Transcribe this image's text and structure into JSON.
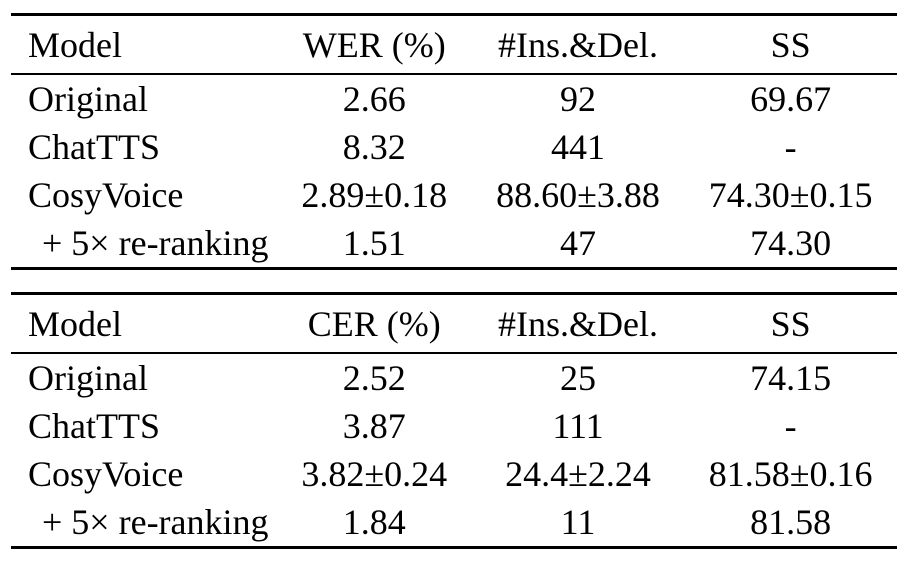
{
  "tables": [
    {
      "name": "wer-table",
      "columns": [
        "Model",
        "WER (%)",
        "#Ins.&Del.",
        "SS"
      ],
      "rows": [
        {
          "model": "Original",
          "indent": false,
          "values": [
            "2.66",
            "92",
            "69.67"
          ]
        },
        {
          "model": "ChatTTS",
          "indent": false,
          "values": [
            "8.32",
            "441",
            "-"
          ]
        },
        {
          "model": "CosyVoice",
          "indent": false,
          "values": [
            "2.89±0.18",
            "88.60±3.88",
            "74.30±0.15"
          ]
        },
        {
          "model": "+ 5× re-ranking",
          "indent": true,
          "values": [
            "1.51",
            "47",
            "74.30"
          ]
        }
      ]
    },
    {
      "name": "cer-table",
      "columns": [
        "Model",
        "CER (%)",
        "#Ins.&Del.",
        "SS"
      ],
      "rows": [
        {
          "model": "Original",
          "indent": false,
          "values": [
            "2.52",
            "25",
            "74.15"
          ]
        },
        {
          "model": "ChatTTS",
          "indent": false,
          "values": [
            "3.87",
            "111",
            "-"
          ]
        },
        {
          "model": "CosyVoice",
          "indent": false,
          "values": [
            "3.82±0.24",
            "24.4±2.24",
            "81.58±0.16"
          ]
        },
        {
          "model": "+ 5× re-ranking",
          "indent": true,
          "values": [
            "1.84",
            "11",
            "81.58"
          ]
        }
      ]
    }
  ],
  "colors": {
    "text": "#000000",
    "rule": "#000000",
    "background": "#ffffff"
  }
}
